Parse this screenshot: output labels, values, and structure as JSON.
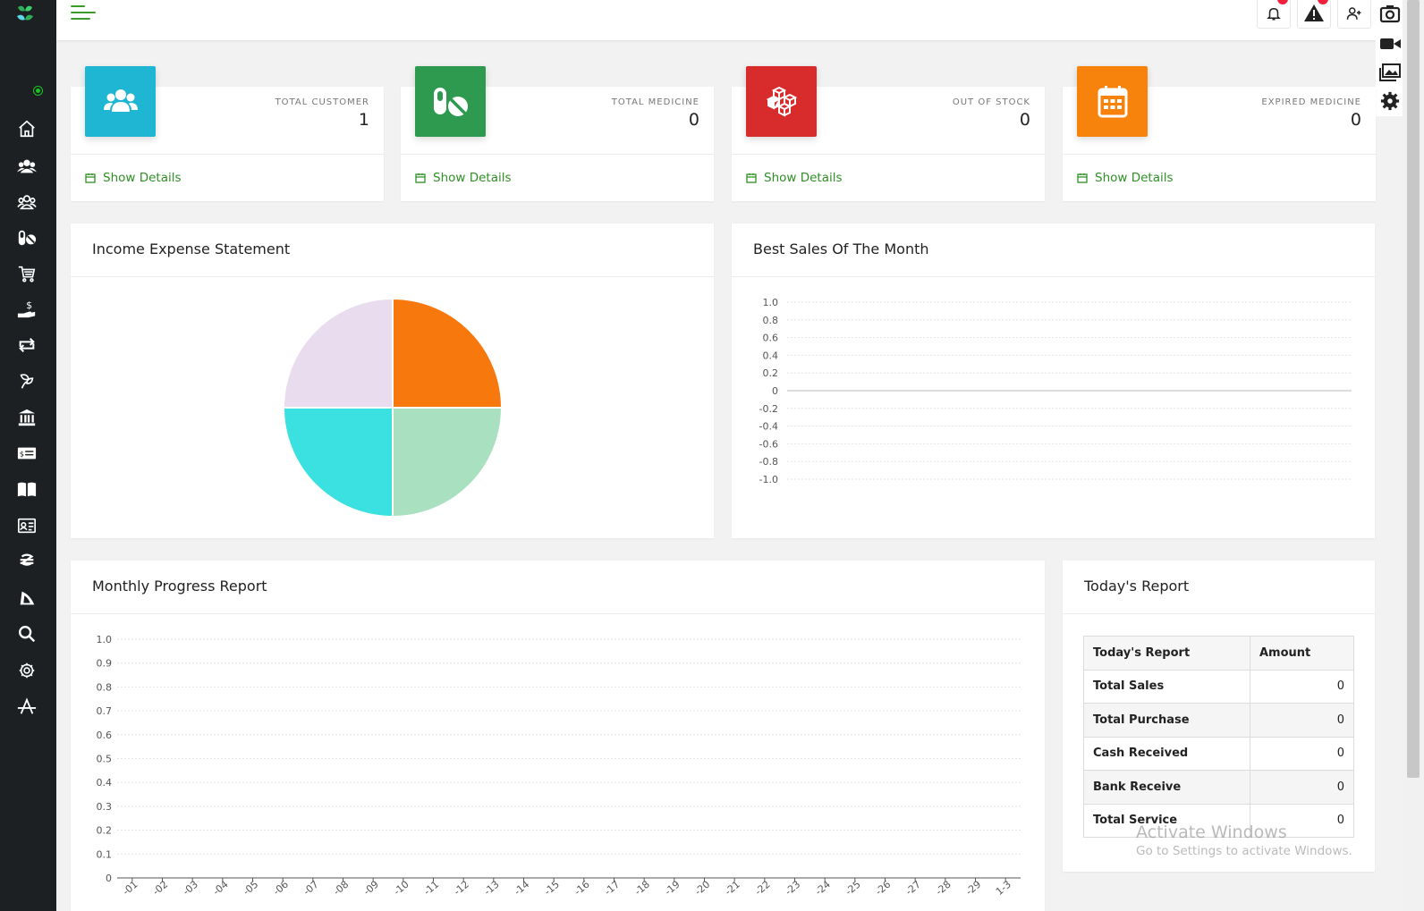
{
  "topbar": {
    "notifications_icon": "bell-icon",
    "alerts_icon": "warning-icon",
    "add_user_icon": "user-plus-icon"
  },
  "sidebar": {
    "items": [
      {
        "name": "home",
        "icon": "home-icon"
      },
      {
        "name": "customers",
        "icon": "users-icon"
      },
      {
        "name": "suppliers",
        "icon": "user-group-icon"
      },
      {
        "name": "medicine",
        "icon": "pills-icon"
      },
      {
        "name": "purchase",
        "icon": "cart-icon"
      },
      {
        "name": "payments",
        "icon": "hand-dollar-icon"
      },
      {
        "name": "returns",
        "icon": "exchange-icon"
      },
      {
        "name": "stock",
        "icon": "leaf-icon"
      },
      {
        "name": "bank",
        "icon": "bank-icon"
      },
      {
        "name": "accounts",
        "icon": "money-card-icon"
      },
      {
        "name": "reports",
        "icon": "book-icon"
      },
      {
        "name": "human-resource",
        "icon": "id-card-icon"
      },
      {
        "name": "tax",
        "icon": "currency-icon"
      },
      {
        "name": "service",
        "icon": "sail-icon"
      },
      {
        "name": "search",
        "icon": "search-icon"
      },
      {
        "name": "settings",
        "icon": "gear-icon"
      },
      {
        "name": "language",
        "icon": "font-icon"
      }
    ]
  },
  "stats": [
    {
      "label": "TOTAL CUSTOMER",
      "value": "1",
      "link": "Show Details",
      "color": "#1fb6d4",
      "icon": "users-icon"
    },
    {
      "label": "TOTAL MEDICINE",
      "value": "0",
      "link": "Show Details",
      "color": "#2e9a4f",
      "icon": "pills-icon"
    },
    {
      "label": "OUT OF STOCK",
      "value": "0",
      "link": "Show Details",
      "color": "#d82b2b",
      "icon": "boxes-icon"
    },
    {
      "label": "EXPIRED MEDICINE",
      "value": "0",
      "link": "Show Details",
      "color": "#f7820c",
      "icon": "calendar-icon"
    }
  ],
  "panels": {
    "income_title": "Income Expense Statement",
    "sales_title": "Best Sales Of The Month",
    "monthly_title": "Monthly Progress Report",
    "today_title": "Today's Report"
  },
  "chart_data": [
    {
      "type": "pie",
      "values": [
        1,
        1,
        1,
        1
      ],
      "colors": [
        "#f7780c",
        "#a8e0c0",
        "#3be0e0",
        "#e8dcee"
      ]
    },
    {
      "type": "line",
      "yticks": [
        "1.0",
        "0.8",
        "0.6",
        "0.4",
        "0.2",
        "0",
        "-0.2",
        "-0.4",
        "-0.6",
        "-0.8",
        "-1.0"
      ],
      "ylim": [
        -1.0,
        1.0
      ],
      "grid": true,
      "series": []
    },
    {
      "type": "bar",
      "yticks": [
        "1.0",
        "0.9",
        "0.8",
        "0.7",
        "0.6",
        "0.5",
        "0.4",
        "0.3",
        "0.2",
        "0.1",
        "0"
      ],
      "ylim": [
        0,
        1.0
      ],
      "categories": [
        "-01",
        "-02",
        "-03",
        "-04",
        "-05",
        "-06",
        "-07",
        "-08",
        "-09",
        "-10",
        "-11",
        "-12",
        "-13",
        "-14",
        "-15",
        "-16",
        "-17",
        "-18",
        "-19",
        "-20",
        "-21",
        "-22",
        "-23",
        "-24",
        "-25",
        "-26",
        "-27",
        "-28",
        "-29",
        "1-3"
      ],
      "grid": true,
      "series": []
    }
  ],
  "today_report": {
    "headers": [
      "Today's Report",
      "Amount"
    ],
    "rows": [
      {
        "label": "Total Sales",
        "amount": "0"
      },
      {
        "label": "Total Purchase",
        "amount": "0"
      },
      {
        "label": "Cash Received",
        "amount": "0"
      },
      {
        "label": "Bank Receive",
        "amount": "0"
      },
      {
        "label": "Total Service",
        "amount": "0"
      }
    ]
  },
  "watermark": {
    "line1": "Activate Windows",
    "line2": "Go to Settings to activate Windows."
  }
}
